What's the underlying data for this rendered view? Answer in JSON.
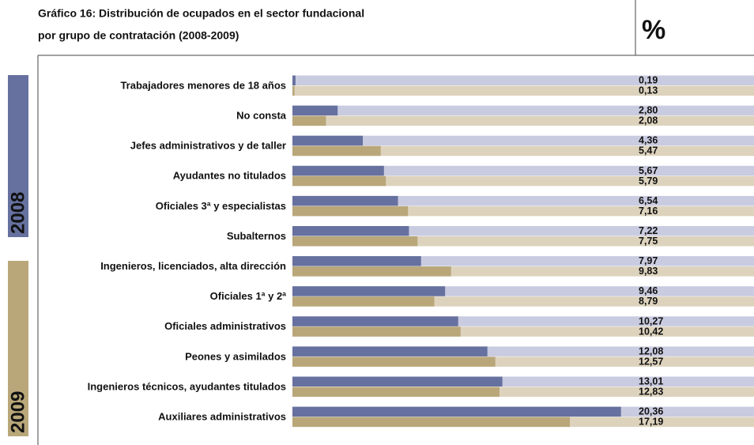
{
  "chart_data": {
    "type": "hbar",
    "title": "Gráfico 16: Distribución de ocupados en el sector fundacional",
    "subtitle": "por grupo de contratación (2008-2009)",
    "unit_label": "%",
    "categories": [
      "Trabajadores menores de 18 años",
      "No consta",
      "Jefes administrativos y de taller",
      "Ayudantes no titulados",
      "Oficiales 3ª y especialistas",
      "Subalternos",
      "Ingenieros, licenciados, alta dirección",
      "Oficiales 1ª y 2ª",
      "Oficiales administrativos",
      "Peones y asimilados",
      "Ingenieros técnicos, ayudantes titulados",
      "Auxiliares administrativos"
    ],
    "series": [
      {
        "name": "2008",
        "color": "#66719f",
        "track_color": "#c9cbe0",
        "values": [
          0.19,
          2.8,
          4.36,
          5.67,
          6.54,
          7.22,
          7.97,
          9.46,
          10.27,
          12.08,
          13.01,
          20.36
        ],
        "value_labels": [
          "0,19",
          "2,80",
          "4,36",
          "5,67",
          "6,54",
          "7,22",
          "7,97",
          "9,46",
          "10,27",
          "12,08",
          "13,01",
          "20,36"
        ]
      },
      {
        "name": "2009",
        "color": "#b9a77a",
        "track_color": "#ddd3bd",
        "values": [
          0.13,
          2.08,
          5.47,
          5.79,
          7.16,
          7.75,
          9.83,
          8.79,
          10.42,
          12.57,
          12.83,
          17.19
        ],
        "value_labels": [
          "0,13",
          "2,08",
          "5,47",
          "5,79",
          "7,16",
          "7,75",
          "9,83",
          "8,79",
          "10,42",
          "12,57",
          "12,83",
          "17,19"
        ]
      }
    ],
    "xlim": [
      0,
      28.6
    ]
  }
}
